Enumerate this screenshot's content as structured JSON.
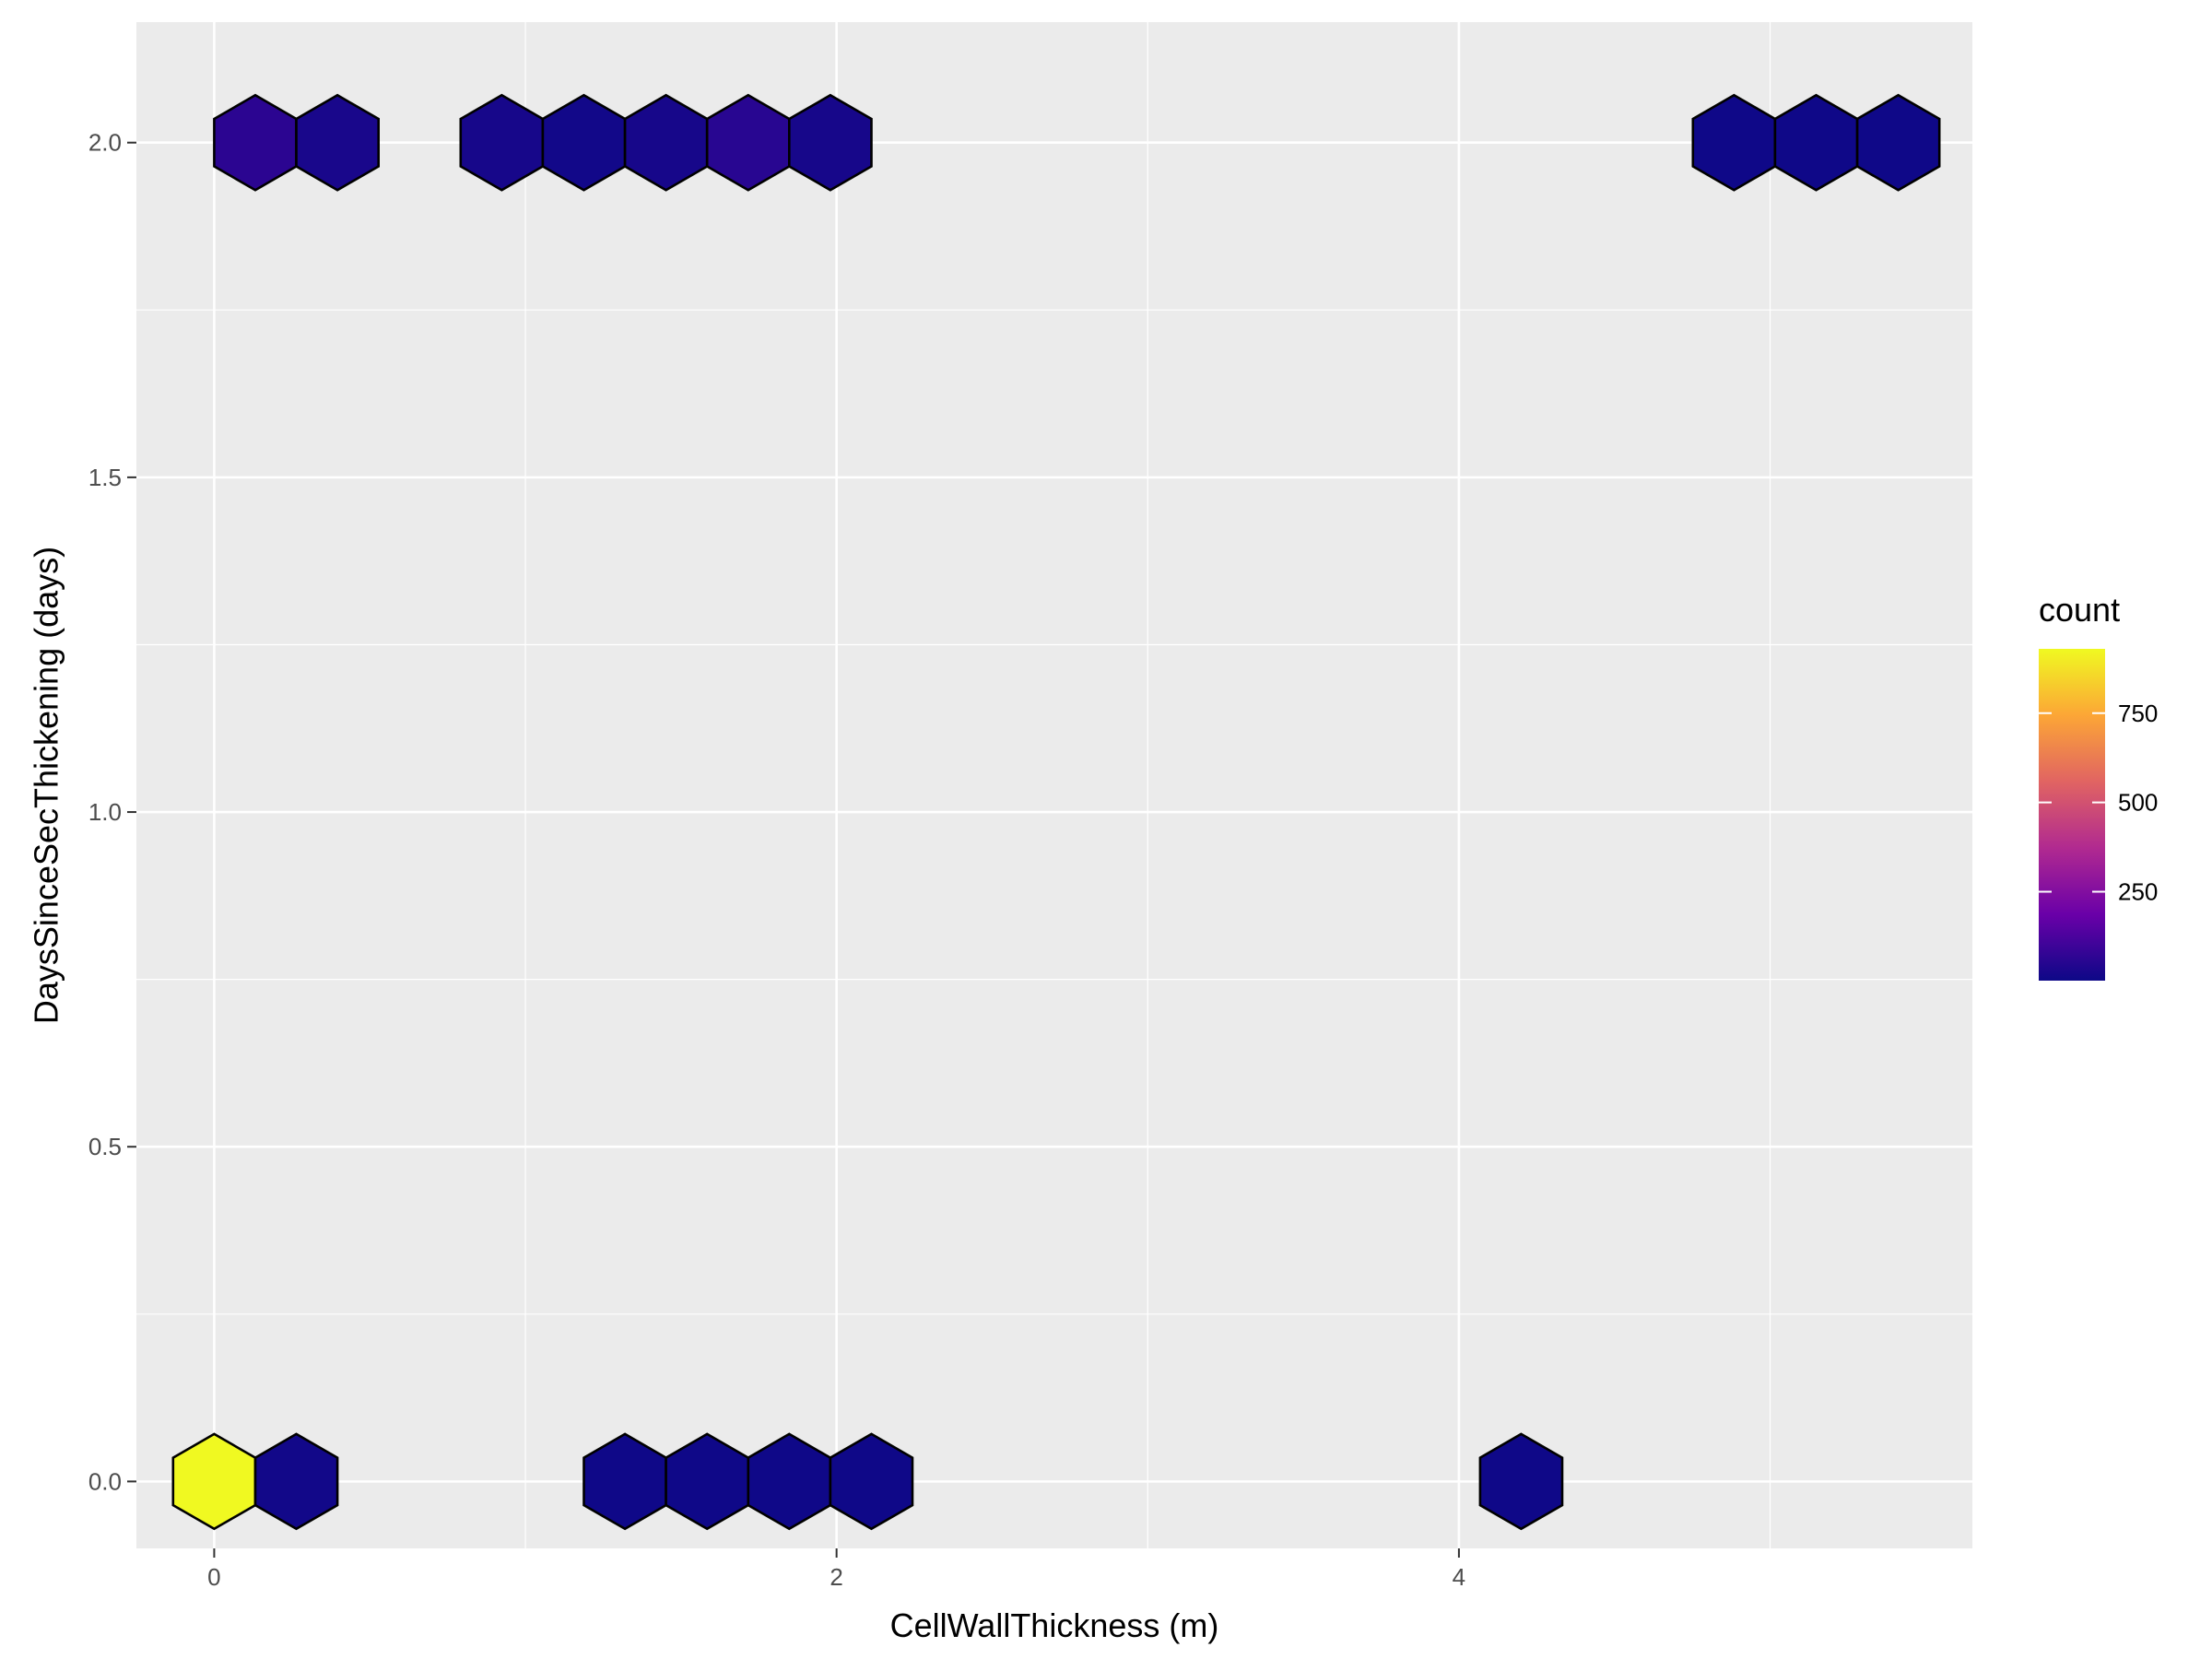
{
  "chart_data": {
    "type": "hexbin",
    "xlabel": "CellWallThickness (m)",
    "ylabel": "DaysSinceSecThickening (days)",
    "xlim": [
      -0.25,
      5.65
    ],
    "ylim": [
      -0.1,
      2.18
    ],
    "x_ticks": [
      0,
      2,
      4
    ],
    "x_tick_labels": [
      "0",
      "2",
      "4"
    ],
    "y_ticks": [
      0.0,
      0.5,
      1.0,
      1.5,
      2.0
    ],
    "y_tick_labels": [
      "0.0",
      "0.5",
      "1.0",
      "1.5",
      "2.0"
    ],
    "grid": true,
    "legend": {
      "title": "count",
      "placement": "right",
      "min": 1,
      "max": 930,
      "ticks": [
        250,
        500,
        750
      ],
      "tick_labels": [
        "250",
        "500",
        "750"
      ]
    },
    "colormap": [
      "#0d0887",
      "#6a00a8",
      "#b12a90",
      "#e16462",
      "#fca636",
      "#f0f921"
    ],
    "hex_radius_x": 0.132,
    "bins": [
      {
        "x": 0.132,
        "y": 2.0,
        "count": 60
      },
      {
        "x": 0.396,
        "y": 2.0,
        "count": 25
      },
      {
        "x": 0.924,
        "y": 2.0,
        "count": 20
      },
      {
        "x": 1.188,
        "y": 2.0,
        "count": 10
      },
      {
        "x": 1.452,
        "y": 2.0,
        "count": 20
      },
      {
        "x": 1.716,
        "y": 2.0,
        "count": 55
      },
      {
        "x": 1.98,
        "y": 2.0,
        "count": 20
      },
      {
        "x": 4.884,
        "y": 2.0,
        "count": 5
      },
      {
        "x": 5.148,
        "y": 2.0,
        "count": 5
      },
      {
        "x": 5.412,
        "y": 2.0,
        "count": 5
      },
      {
        "x": 0.0,
        "y": 0.0,
        "count": 930
      },
      {
        "x": 0.264,
        "y": 0.0,
        "count": 10
      },
      {
        "x": 1.32,
        "y": 0.0,
        "count": 5
      },
      {
        "x": 1.584,
        "y": 0.0,
        "count": 5
      },
      {
        "x": 1.848,
        "y": 0.0,
        "count": 5
      },
      {
        "x": 2.112,
        "y": 0.0,
        "count": 5
      },
      {
        "x": 4.2,
        "y": 0.0,
        "count": 5
      }
    ]
  }
}
